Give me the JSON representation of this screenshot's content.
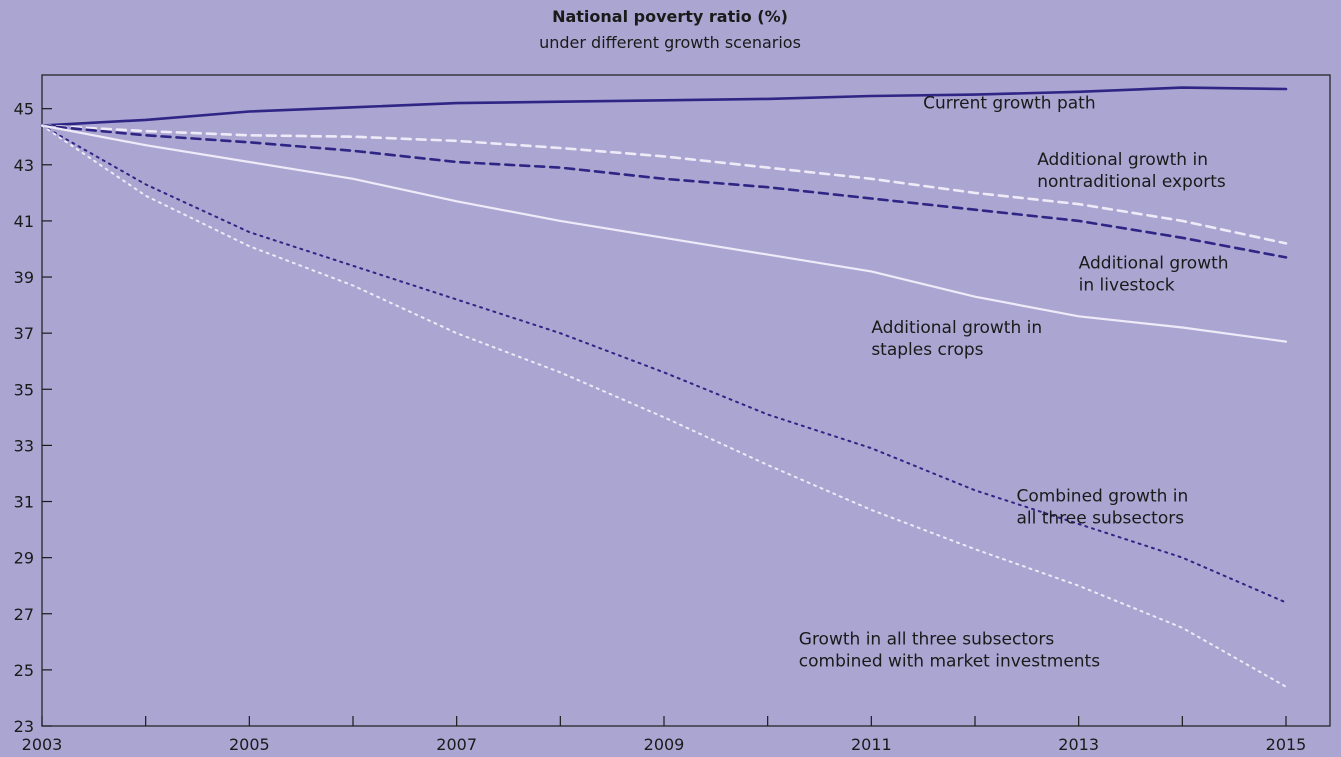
{
  "chart_data": {
    "type": "line",
    "title": "National poverty ratio (%)",
    "subtitle": "under different growth scenarios",
    "xlabel": "",
    "ylabel": "",
    "xlim": [
      2003,
      2015
    ],
    "ylim": [
      23,
      46.2
    ],
    "x_ticks": [
      2003,
      2005,
      2007,
      2009,
      2011,
      2013,
      2015
    ],
    "x_tick_labels": [
      "2003",
      "2005",
      "2007",
      "2009",
      "2011",
      "2013",
      "2015"
    ],
    "y_ticks": [
      23,
      25,
      27,
      29,
      31,
      33,
      35,
      37,
      39,
      41,
      43,
      45
    ],
    "y_tick_labels": [
      "23",
      "25",
      "27",
      "29",
      "31",
      "33",
      "35",
      "37",
      "39",
      "41",
      "43",
      "45"
    ],
    "grid": false,
    "x": [
      2003,
      2004,
      2005,
      2006,
      2007,
      2008,
      2009,
      2010,
      2011,
      2012,
      2013,
      2014,
      2015
    ],
    "series": [
      {
        "name": "Current growth path",
        "label_lines": [
          "Current growth path"
        ],
        "label_at": [
          2011.5,
          45.0
        ],
        "color": "#2e2585",
        "style": "solid-thick",
        "values": [
          44.4,
          44.6,
          44.9,
          45.05,
          45.2,
          45.25,
          45.3,
          45.35,
          45.45,
          45.5,
          45.6,
          45.75,
          45.7
        ]
      },
      {
        "name": "Additional growth in nontraditional exports",
        "label_lines": [
          "Additional growth in",
          "nontraditional exports"
        ],
        "label_at": [
          2012.6,
          43.0
        ],
        "color": "#eeeaf8",
        "style": "dashed",
        "values": [
          44.4,
          44.2,
          44.05,
          44.0,
          43.85,
          43.6,
          43.3,
          42.9,
          42.5,
          42.0,
          41.6,
          41.0,
          40.2
        ]
      },
      {
        "name": "Additional growth in livestock",
        "label_lines": [
          "Additional growth",
          "in livestock"
        ],
        "label_at": [
          2013.0,
          39.3
        ],
        "color": "#2e2585",
        "style": "dashed",
        "values": [
          44.4,
          44.05,
          43.8,
          43.5,
          43.1,
          42.9,
          42.5,
          42.2,
          41.8,
          41.4,
          41.0,
          40.4,
          39.7
        ]
      },
      {
        "name": "Additional growth in staples crops",
        "label_lines": [
          "Additional growth in",
          "staples crops"
        ],
        "label_at": [
          2011.0,
          37.0
        ],
        "color": "#eeeaf8",
        "style": "solid",
        "values": [
          44.4,
          43.7,
          43.1,
          42.5,
          41.7,
          41.0,
          40.4,
          39.8,
          39.2,
          38.3,
          37.6,
          37.2,
          36.7
        ]
      },
      {
        "name": "Combined growth in all three subsectors",
        "label_lines": [
          "Combined growth in",
          "all three subsectors"
        ],
        "label_at": [
          2012.4,
          31.0
        ],
        "color": "#2e2585",
        "style": "dotted",
        "values": [
          44.4,
          42.3,
          40.6,
          39.4,
          38.2,
          37.0,
          35.6,
          34.1,
          32.9,
          31.4,
          30.2,
          29.0,
          27.4
        ]
      },
      {
        "name": "Growth in all three subsectors combined with market investments",
        "label_lines": [
          "Growth in all three subsectors",
          "combined with market investments"
        ],
        "label_at": [
          2010.3,
          25.9
        ],
        "color": "#eeeaf8",
        "style": "dotted",
        "values": [
          44.4,
          41.9,
          40.1,
          38.7,
          37.0,
          35.6,
          34.0,
          32.3,
          30.7,
          29.3,
          28.0,
          26.5,
          24.4
        ]
      }
    ]
  }
}
